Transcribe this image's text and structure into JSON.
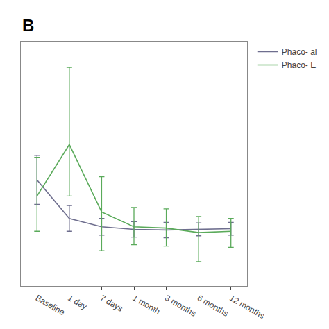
{
  "chart_data": {
    "type": "line",
    "title": "B",
    "categories": [
      "Baseline",
      "1 day",
      "7 days",
      "1 month",
      "3 months",
      "6 months",
      "12 months"
    ],
    "series": [
      {
        "name": "Phaco- al",
        "color": "#6e6e8e",
        "values": [
          16.5,
          10.5,
          9.2,
          8.8,
          8.7,
          8.8,
          8.9
        ],
        "error_upper": [
          3.8,
          2.0,
          1.3,
          1.2,
          1.2,
          1.0,
          1.0
        ],
        "error_lower": [
          3.8,
          2.0,
          1.3,
          1.2,
          1.2,
          1.0,
          1.0
        ]
      },
      {
        "name": "Phaco- E",
        "color": "#5aaa5a",
        "values": [
          14.0,
          22.0,
          11.5,
          9.2,
          9.0,
          8.3,
          8.5
        ],
        "error_upper": [
          6.0,
          12.0,
          5.5,
          3.0,
          3.0,
          2.5,
          2.0
        ],
        "error_lower": [
          5.5,
          8.0,
          6.0,
          2.8,
          2.8,
          4.5,
          2.5
        ]
      }
    ],
    "ylim": [
      0,
      38
    ],
    "yticks": [],
    "tick_labels": "x",
    "grid": false,
    "legend": "right"
  }
}
